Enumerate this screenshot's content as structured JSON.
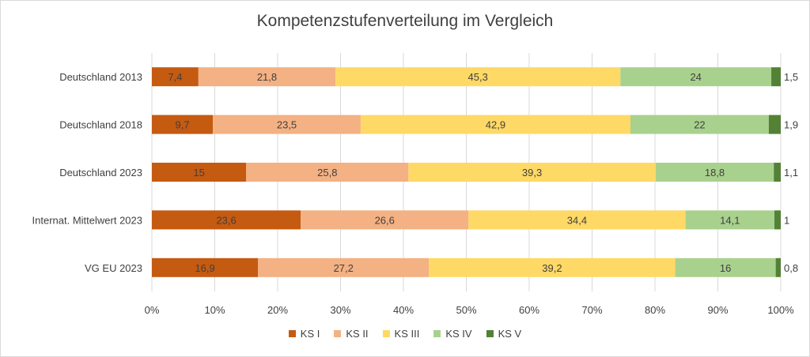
{
  "chart_data": {
    "type": "bar",
    "orientation": "horizontal",
    "stacked": "percent",
    "title": "Kompetenzstufenverteilung im Vergleich",
    "categories": [
      "Deutschland 2013",
      "Deutschland 2018",
      "Deutschland 2023",
      "Internat. Mittelwert 2023",
      "VG EU 2023"
    ],
    "series": [
      {
        "name": "KS I",
        "color": "#C55A11",
        "values": [
          7.4,
          9.7,
          15,
          23.6,
          16.9
        ],
        "labels": [
          "7,4",
          "9,7",
          "15",
          "23,6",
          "16,9"
        ]
      },
      {
        "name": "KS II",
        "color": "#F4B183",
        "values": [
          21.8,
          23.5,
          25.8,
          26.6,
          27.2
        ],
        "labels": [
          "21,8",
          "23,5",
          "25,8",
          "26,6",
          "27,2"
        ]
      },
      {
        "name": "KS III",
        "color": "#FFD966",
        "values": [
          45.3,
          42.9,
          39.3,
          34.4,
          39.2
        ],
        "labels": [
          "45,3",
          "42,9",
          "39,3",
          "34,4",
          "39,2"
        ]
      },
      {
        "name": "KS IV",
        "color": "#A9D18E",
        "values": [
          24,
          22,
          18.8,
          14.1,
          16
        ],
        "labels": [
          "24",
          "22",
          "18,8",
          "14,1",
          "16"
        ]
      },
      {
        "name": "KS V",
        "color": "#538135",
        "values": [
          1.5,
          1.9,
          1.1,
          1,
          0.8
        ],
        "labels": [
          "1,5",
          "1,9",
          "1,1",
          "1",
          "0,8"
        ]
      }
    ],
    "xlim": [
      0,
      100
    ],
    "xticks": [
      "0%",
      "10%",
      "20%",
      "30%",
      "40%",
      "50%",
      "60%",
      "70%",
      "80%",
      "90%",
      "100%"
    ],
    "grid": true,
    "legend_position": "bottom"
  }
}
